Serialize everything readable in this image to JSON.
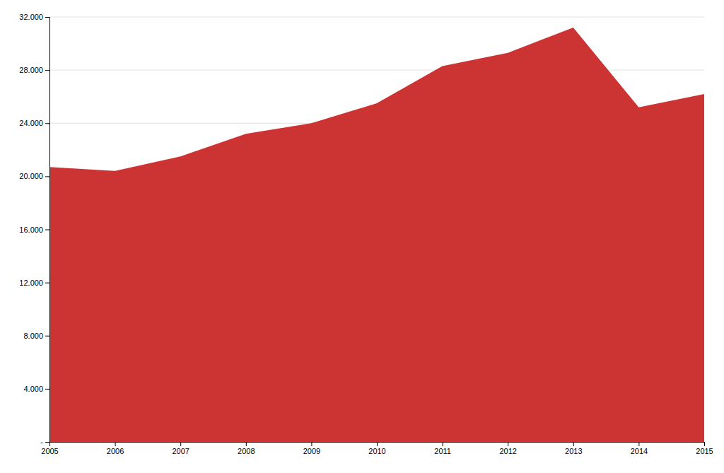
{
  "chart_data": {
    "type": "area",
    "x": [
      2005,
      2006,
      2007,
      2008,
      2009,
      2010,
      2011,
      2012,
      2013,
      2014,
      2015
    ],
    "values": [
      20700,
      20400,
      21500,
      23200,
      24000,
      25500,
      28300,
      29300,
      31200,
      25200,
      26200
    ],
    "color": "#CC3333",
    "xlim": [
      2005,
      2015
    ],
    "xticks": [
      2005,
      2006,
      2007,
      2008,
      2009,
      2010,
      2011,
      2012,
      2013,
      2014,
      2015
    ],
    "ylim": [
      0,
      32000
    ],
    "yticks": [
      {
        "value": 0,
        "label": "-"
      },
      {
        "value": 4000,
        "label": "4.000"
      },
      {
        "value": 8000,
        "label": "8.000"
      },
      {
        "value": 12000,
        "label": "12.000"
      },
      {
        "value": 16000,
        "label": "16.000"
      },
      {
        "value": 20000,
        "label": "20.000"
      },
      {
        "value": 24000,
        "label": "24.000"
      },
      {
        "value": 28000,
        "label": "28.000"
      },
      {
        "value": 32000,
        "label": "32.000"
      }
    ],
    "grid": true
  }
}
